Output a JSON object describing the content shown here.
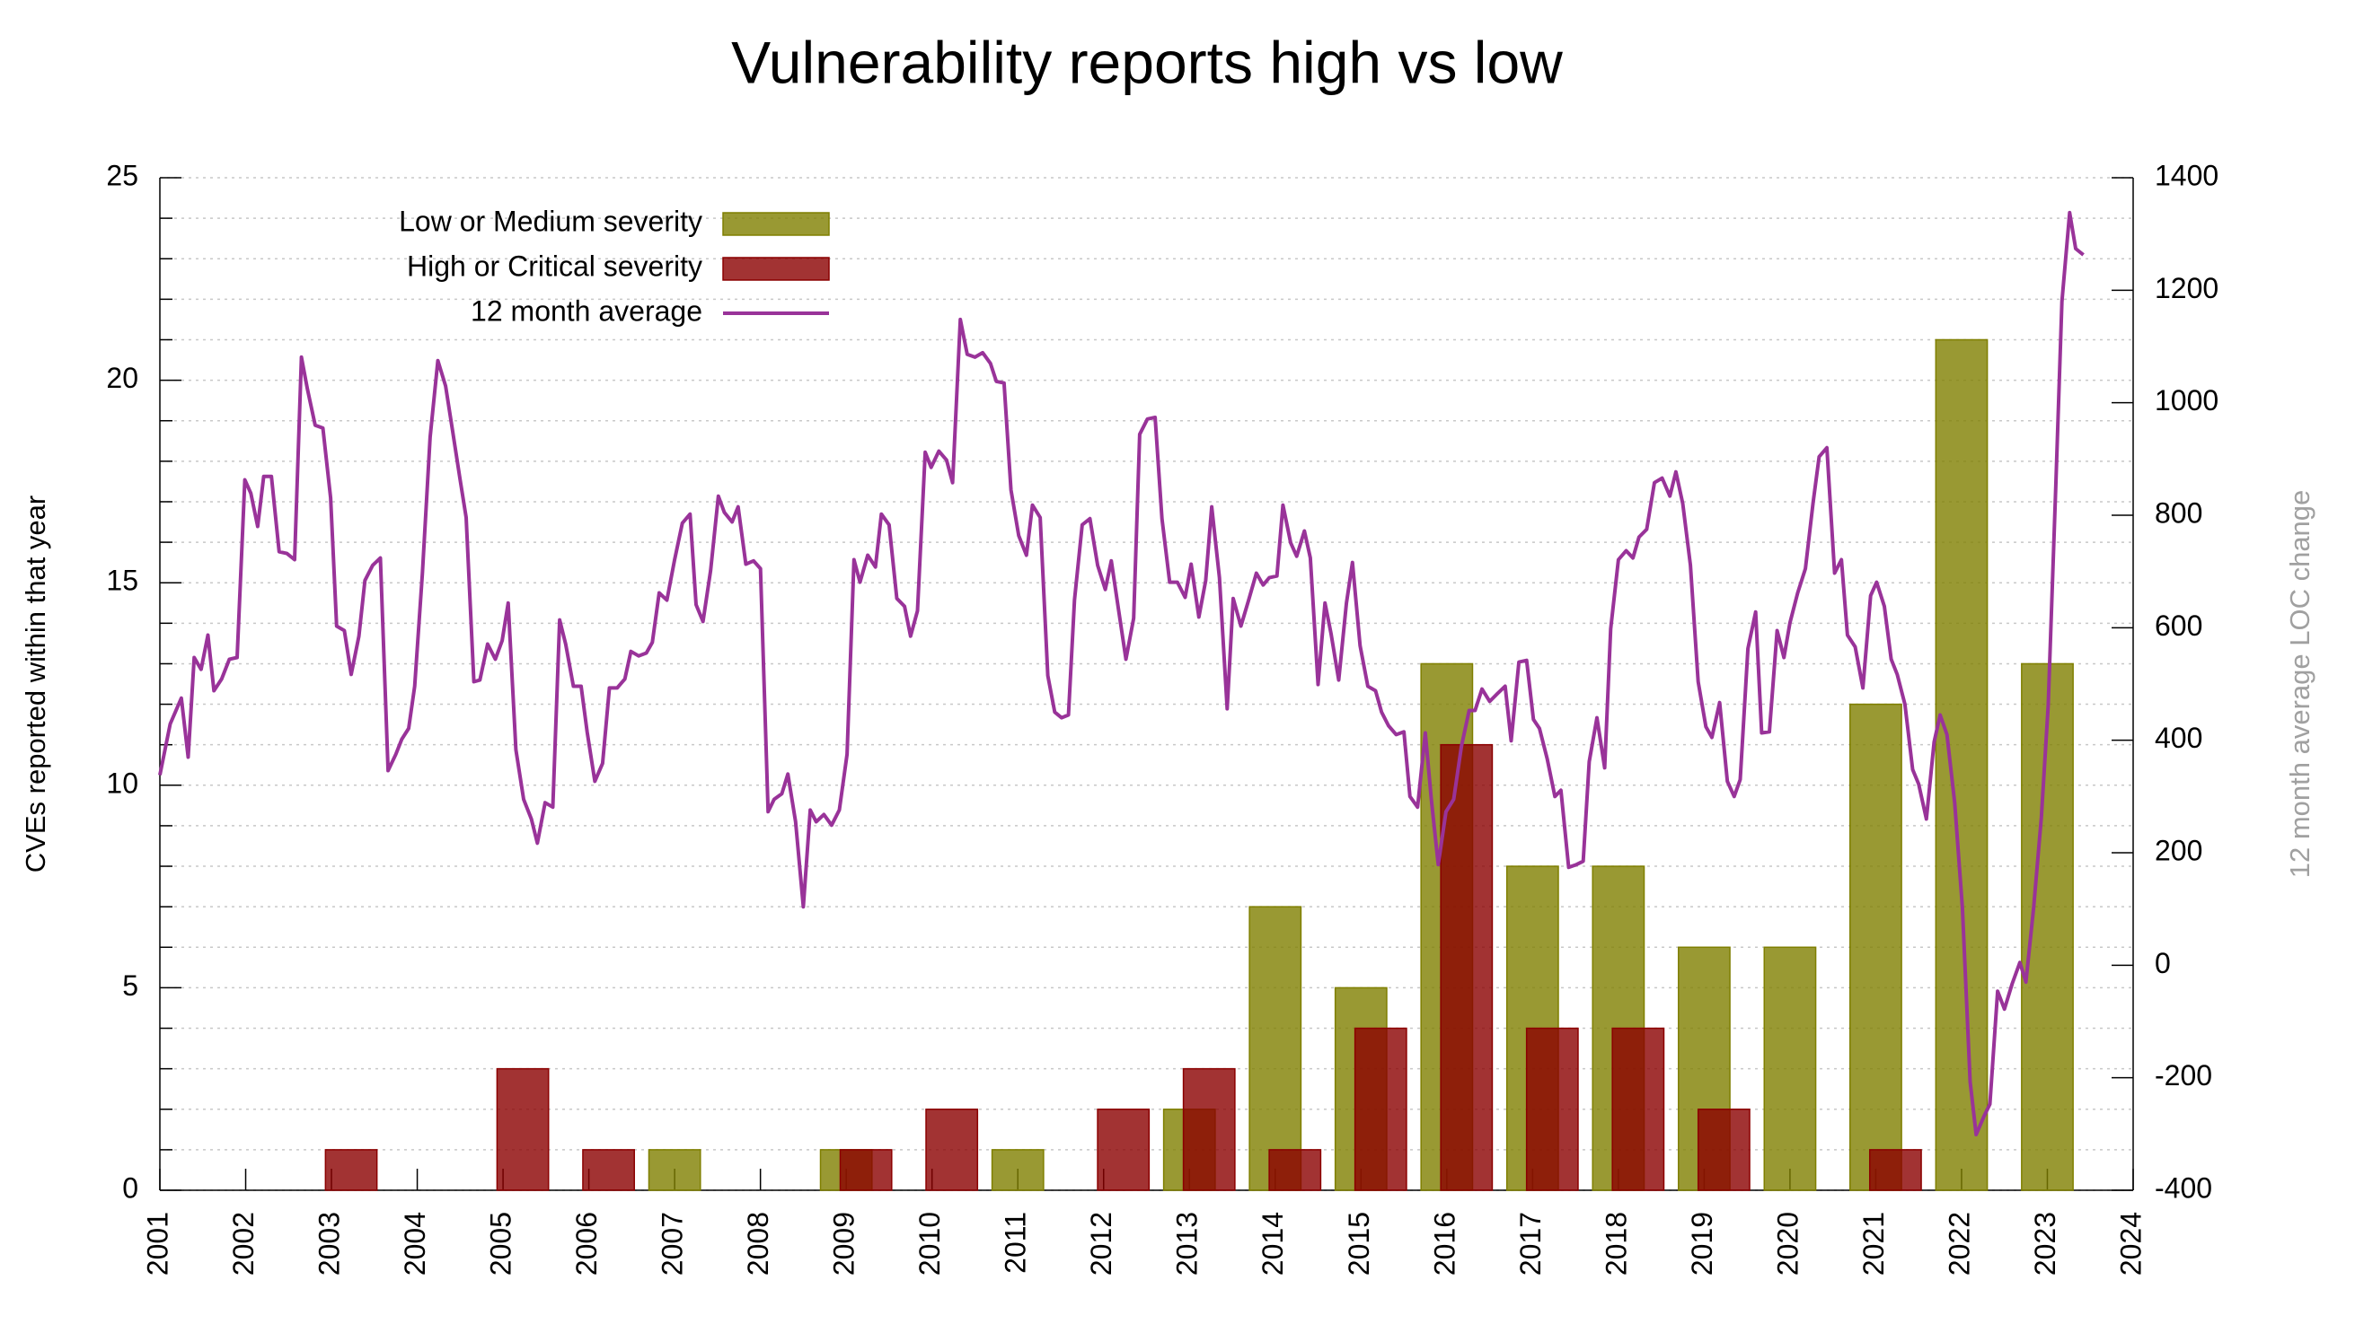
{
  "chart_data": {
    "type": "bar",
    "title": "Vulnerability reports high vs low",
    "y_label": "CVEs reported within that year",
    "y2_label": "12 month average LOC change",
    "xlim": [
      2001,
      2024
    ],
    "xticks": [
      2001,
      2002,
      2003,
      2004,
      2005,
      2006,
      2007,
      2008,
      2009,
      2010,
      2011,
      2012,
      2013,
      2014,
      2015,
      2016,
      2017,
      2018,
      2019,
      2020,
      2021,
      2022,
      2023,
      2024
    ],
    "ylim": [
      0,
      25
    ],
    "yticks": [
      0,
      5,
      10,
      15,
      20,
      25
    ],
    "yminorticks": [
      1,
      2,
      3,
      4,
      6,
      7,
      8,
      9,
      11,
      12,
      13,
      14,
      16,
      17,
      18,
      19,
      21,
      22,
      23,
      24
    ],
    "y2lim": [
      -400,
      1400
    ],
    "y2ticks": [
      -400,
      -200,
      0,
      200,
      400,
      600,
      800,
      1000,
      1200,
      1400
    ],
    "grid": true,
    "legend": "upper left",
    "series": [
      {
        "name": "Low or Medium severity",
        "type": "bar",
        "color": "#7f7f00",
        "x": [
          2007,
          2009,
          2011,
          2013,
          2014,
          2015,
          2016,
          2017,
          2018,
          2019,
          2020,
          2021,
          2022,
          2023
        ],
        "values": [
          1,
          1,
          1,
          2,
          7,
          5,
          13,
          8,
          8,
          6,
          6,
          12,
          21,
          13
        ]
      },
      {
        "name": "High or Critical severity",
        "type": "bar",
        "color": "#8b0000",
        "x": [
          2003,
          2005,
          2006,
          2009,
          2010,
          2012,
          2013,
          2014,
          2015,
          2016,
          2017,
          2018,
          2019,
          2021
        ],
        "values": [
          1,
          3,
          1,
          1,
          2,
          2,
          3,
          1,
          4,
          11,
          4,
          4,
          2,
          1
        ]
      },
      {
        "name": "12 month average",
        "type": "line",
        "color": "#993399",
        "axis": "y2",
        "x": [
          2001.0,
          2001.12,
          2001.25,
          2001.33,
          2001.4,
          2001.48,
          2001.56,
          2001.63,
          2001.72,
          2001.81,
          2001.9,
          2001.99,
          2002.06,
          2002.14,
          2002.21,
          2002.3,
          2002.39,
          2002.48,
          2002.57,
          2002.65,
          2002.72,
          2002.81,
          2002.9,
          2002.99,
          2003.06,
          2003.15,
          2003.23,
          2003.32,
          2003.39,
          2003.48,
          2003.57,
          2003.66,
          2003.75,
          2003.82,
          2003.9,
          2003.97,
          2004.06,
          2004.15,
          2004.24,
          2004.33,
          2004.41,
          2004.5,
          2004.57,
          2004.66,
          2004.73,
          2004.82,
          2004.91,
          2004.99,
          2005.06,
          2005.15,
          2005.24,
          2005.33,
          2005.4,
          2005.49,
          2005.58,
          2005.66,
          2005.73,
          2005.82,
          2005.91,
          2005.98,
          2006.07,
          2006.16,
          2006.24,
          2006.33,
          2006.42,
          2006.49,
          2006.58,
          2006.67,
          2006.74,
          2006.82,
          2006.91,
          2007.0,
          2007.09,
          2007.18,
          2007.25,
          2007.33,
          2007.42,
          2007.51,
          2007.58,
          2007.67,
          2007.74,
          2007.83,
          2007.92,
          2008.0,
          2008.09,
          2008.16,
          2008.25,
          2008.32,
          2008.41,
          2008.5,
          2008.58,
          2008.65,
          2008.74,
          2008.83,
          2008.92,
          2009.01,
          2009.09,
          2009.16,
          2009.25,
          2009.34,
          2009.41,
          2009.5,
          2009.59,
          2009.68,
          2009.75,
          2009.83,
          2009.92,
          2009.99,
          2010.08,
          2010.17,
          2010.24,
          2010.33,
          2010.41,
          2010.5,
          2010.59,
          2010.68,
          2010.75,
          2010.84,
          2010.92,
          2011.01,
          2011.1,
          2011.17,
          2011.26,
          2011.35,
          2011.43,
          2011.51,
          2011.59,
          2011.66,
          2011.75,
          2011.84,
          2011.93,
          2012.02,
          2012.09,
          2012.17,
          2012.26,
          2012.35,
          2012.42,
          2012.51,
          2012.6,
          2012.68,
          2012.77,
          2012.86,
          2012.95,
          2013.02,
          2013.11,
          2013.19,
          2013.26,
          2013.35,
          2013.44,
          2013.51,
          2013.6,
          2013.69,
          2013.78,
          2013.86,
          2013.93,
          2014.02,
          2014.09,
          2014.18,
          2014.25,
          2014.34,
          2014.41,
          2014.5,
          2014.58,
          2014.65,
          2014.74,
          2014.83,
          2014.9,
          2014.99,
          2015.08,
          2015.17,
          2015.24,
          2015.32,
          2015.41,
          2015.5,
          2015.57,
          2015.66,
          2015.75,
          2015.82,
          2015.9,
          2015.99,
          2016.08,
          2016.17,
          2016.26,
          2016.33,
          2016.41,
          2016.5,
          2016.59,
          2016.68,
          2016.75,
          2016.84,
          2016.93,
          2017.01,
          2017.08,
          2017.17,
          2017.26,
          2017.33,
          2017.42,
          2017.51,
          2017.59,
          2017.66,
          2017.75,
          2017.84,
          2017.91,
          2018.0,
          2018.09,
          2018.17,
          2018.24,
          2018.33,
          2018.42,
          2018.51,
          2018.6,
          2018.67,
          2018.75,
          2018.84,
          2018.93,
          2019.02,
          2019.09,
          2019.18,
          2019.27,
          2019.35,
          2019.42,
          2019.51,
          2019.6,
          2019.67,
          2019.76,
          2019.85,
          2019.93,
          2020.0,
          2020.09,
          2020.18,
          2020.27,
          2020.34,
          2020.43,
          2020.52,
          2020.6,
          2020.67,
          2020.76,
          2020.85,
          2020.94,
          2021.01,
          2021.1,
          2021.18,
          2021.25,
          2021.34,
          2021.43,
          2021.5,
          2021.59,
          2021.68,
          2021.75,
          2021.83,
          2021.92,
          2022.01,
          2022.1,
          2022.17,
          2022.26,
          2022.33,
          2022.42,
          2022.5,
          2022.59,
          2022.68,
          2022.75,
          2022.84,
          2022.93,
          2023.01,
          2023.1,
          2023.17,
          2023.26,
          2023.33,
          2023.42
        ],
        "values": [
          338,
          429,
          475,
          370,
          547,
          526,
          587,
          488,
          509,
          544,
          547,
          863,
          839,
          780,
          869,
          869,
          735,
          732,
          721,
          1081,
          1024,
          960,
          955,
          831,
          603,
          595,
          517,
          585,
          684,
          711,
          724,
          346,
          375,
          402,
          421,
          496,
          697,
          939,
          1075,
          1030,
          952,
          863,
          796,
          504,
          507,
          571,
          544,
          577,
          644,
          383,
          295,
          260,
          217,
          289,
          281,
          614,
          571,
          496,
          496,
          415,
          327,
          359,
          493,
          493,
          509,
          558,
          550,
          555,
          574,
          662,
          649,
          721,
          786,
          802,
          641,
          611,
          702,
          834,
          805,
          788,
          815,
          713,
          719,
          705,
          273,
          295,
          305,
          340,
          255,
          104,
          276,
          255,
          268,
          249,
          276,
          375,
          721,
          681,
          729,
          708,
          802,
          783,
          652,
          638,
          585,
          630,
          912,
          885,
          914,
          898,
          858,
          1148,
          1086,
          1081,
          1089,
          1070,
          1038,
          1035,
          845,
          764,
          729,
          818,
          796,
          515,
          450,
          440,
          445,
          649,
          783,
          794,
          711,
          668,
          719,
          636,
          544,
          617,
          944,
          971,
          974,
          794,
          681,
          681,
          654,
          713,
          619,
          684,
          815,
          689,
          456,
          652,
          603,
          649,
          697,
          676,
          689,
          692,
          818,
          751,
          727,
          772,
          724,
          499,
          644,
          590,
          507,
          644,
          716,
          568,
          496,
          488,
          450,
          426,
          410,
          415,
          300,
          281,
          413,
          295,
          179,
          273,
          295,
          389,
          453,
          453,
          491,
          469,
          483,
          496,
          399,
          539,
          542,
          437,
          421,
          367,
          300,
          311,
          174,
          179,
          185,
          362,
          440,
          351,
          598,
          721,
          737,
          724,
          761,
          775,
          858,
          866,
          834,
          877,
          821,
          711,
          504,
          424,
          405,
          467,
          327,
          300,
          330,
          563,
          628,
          413,
          415,
          595,
          547,
          609,
          662,
          705,
          823,
          904,
          920,
          697,
          721,
          587,
          566,
          493,
          657,
          681,
          638,
          544,
          517,
          464,
          348,
          322,
          260,
          397,
          445,
          410,
          289,
          102,
          -207,
          -301,
          -269,
          -247,
          -46,
          -78,
          -33,
          5,
          -30,
          102,
          263,
          461,
          858,
          1180,
          1338,
          1274,
          1263
        ]
      }
    ]
  }
}
